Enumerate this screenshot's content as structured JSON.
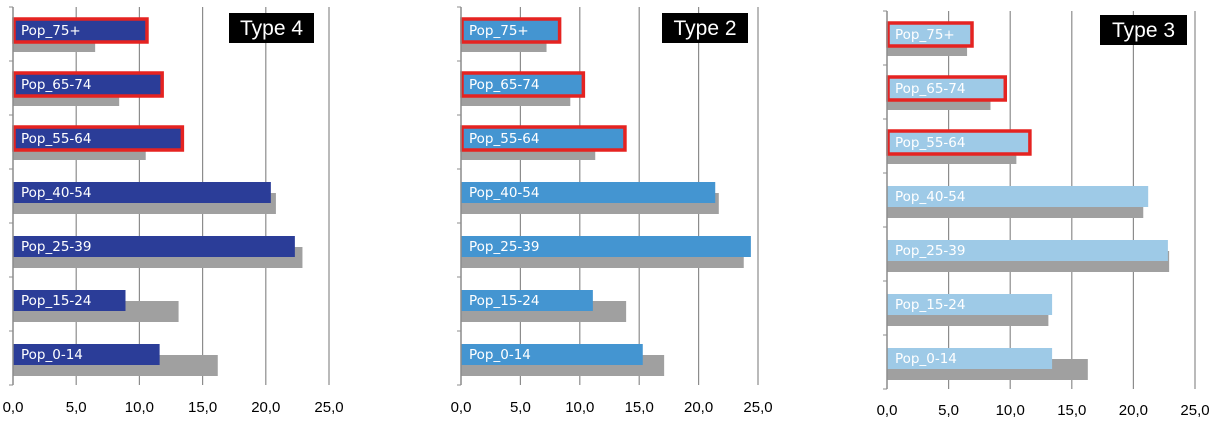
{
  "chart_data": [
    {
      "type": "bar",
      "orientation": "horizontal",
      "title": "Type 4",
      "categories": [
        "Pop_0-14",
        "Pop_15-24",
        "Pop_25-39",
        "Pop_40-54",
        "Pop_55-64",
        "Pop_65-74",
        "Pop_75+"
      ],
      "series": [
        {
          "values": [
            11.6,
            8.9,
            22.3,
            20.4,
            13.4,
            11.8,
            10.6
          ],
          "color": "#2b3d98"
        },
        {
          "values": [
            16.2,
            13.1,
            22.9,
            20.8,
            10.5,
            8.4,
            6.5
          ],
          "color": "#a0a0a0"
        }
      ],
      "highlighted": [
        "Pop_55-64",
        "Pop_65-74",
        "Pop_75+"
      ],
      "highlight_color": "#e52321",
      "label_color": "#ffffff",
      "xlim": [
        0,
        25
      ],
      "xticks": [
        "0,0",
        "5,0",
        "10,0",
        "15,0",
        "20,0",
        "25,0"
      ],
      "grid": true
    },
    {
      "type": "bar",
      "orientation": "horizontal",
      "title": "Type 2",
      "categories": [
        "Pop_0-14",
        "Pop_15-24",
        "Pop_25-39",
        "Pop_40-54",
        "Pop_55-64",
        "Pop_65-74",
        "Pop_75+"
      ],
      "series": [
        {
          "values": [
            15.3,
            11.1,
            24.4,
            21.4,
            13.8,
            10.3,
            8.3
          ],
          "color": "#4495d1"
        },
        {
          "values": [
            17.1,
            13.9,
            23.8,
            21.7,
            11.3,
            9.2,
            7.2
          ],
          "color": "#a0a0a0"
        }
      ],
      "highlighted": [
        "Pop_55-64",
        "Pop_65-74",
        "Pop_75+"
      ],
      "highlight_color": "#e52321",
      "label_color": "#ffffff",
      "xlim": [
        0,
        25
      ],
      "xticks": [
        "0,0",
        "5,0",
        "10,0",
        "15,0",
        "20,0",
        "25,0"
      ],
      "grid": true
    },
    {
      "type": "bar",
      "orientation": "horizontal",
      "title": "Type 3",
      "categories": [
        "Pop_0-14",
        "Pop_15-24",
        "Pop_25-39",
        "Pop_40-54",
        "Pop_55-64",
        "Pop_65-74",
        "Pop_75+"
      ],
      "series": [
        {
          "values": [
            13.4,
            13.4,
            22.8,
            21.2,
            11.6,
            9.6,
            6.9
          ],
          "color": "#9ecae7"
        },
        {
          "values": [
            16.3,
            13.1,
            22.9,
            20.8,
            10.5,
            8.4,
            6.5
          ],
          "color": "#a0a0a0"
        }
      ],
      "highlighted": [
        "Pop_55-64",
        "Pop_65-74",
        "Pop_75+"
      ],
      "highlight_color": "#e52321",
      "label_color": "#ffffff",
      "xlim": [
        0,
        25
      ],
      "xticks": [
        "0,0",
        "5,0",
        "10,0",
        "15,0",
        "20,0",
        "25,0"
      ],
      "grid": true
    }
  ]
}
